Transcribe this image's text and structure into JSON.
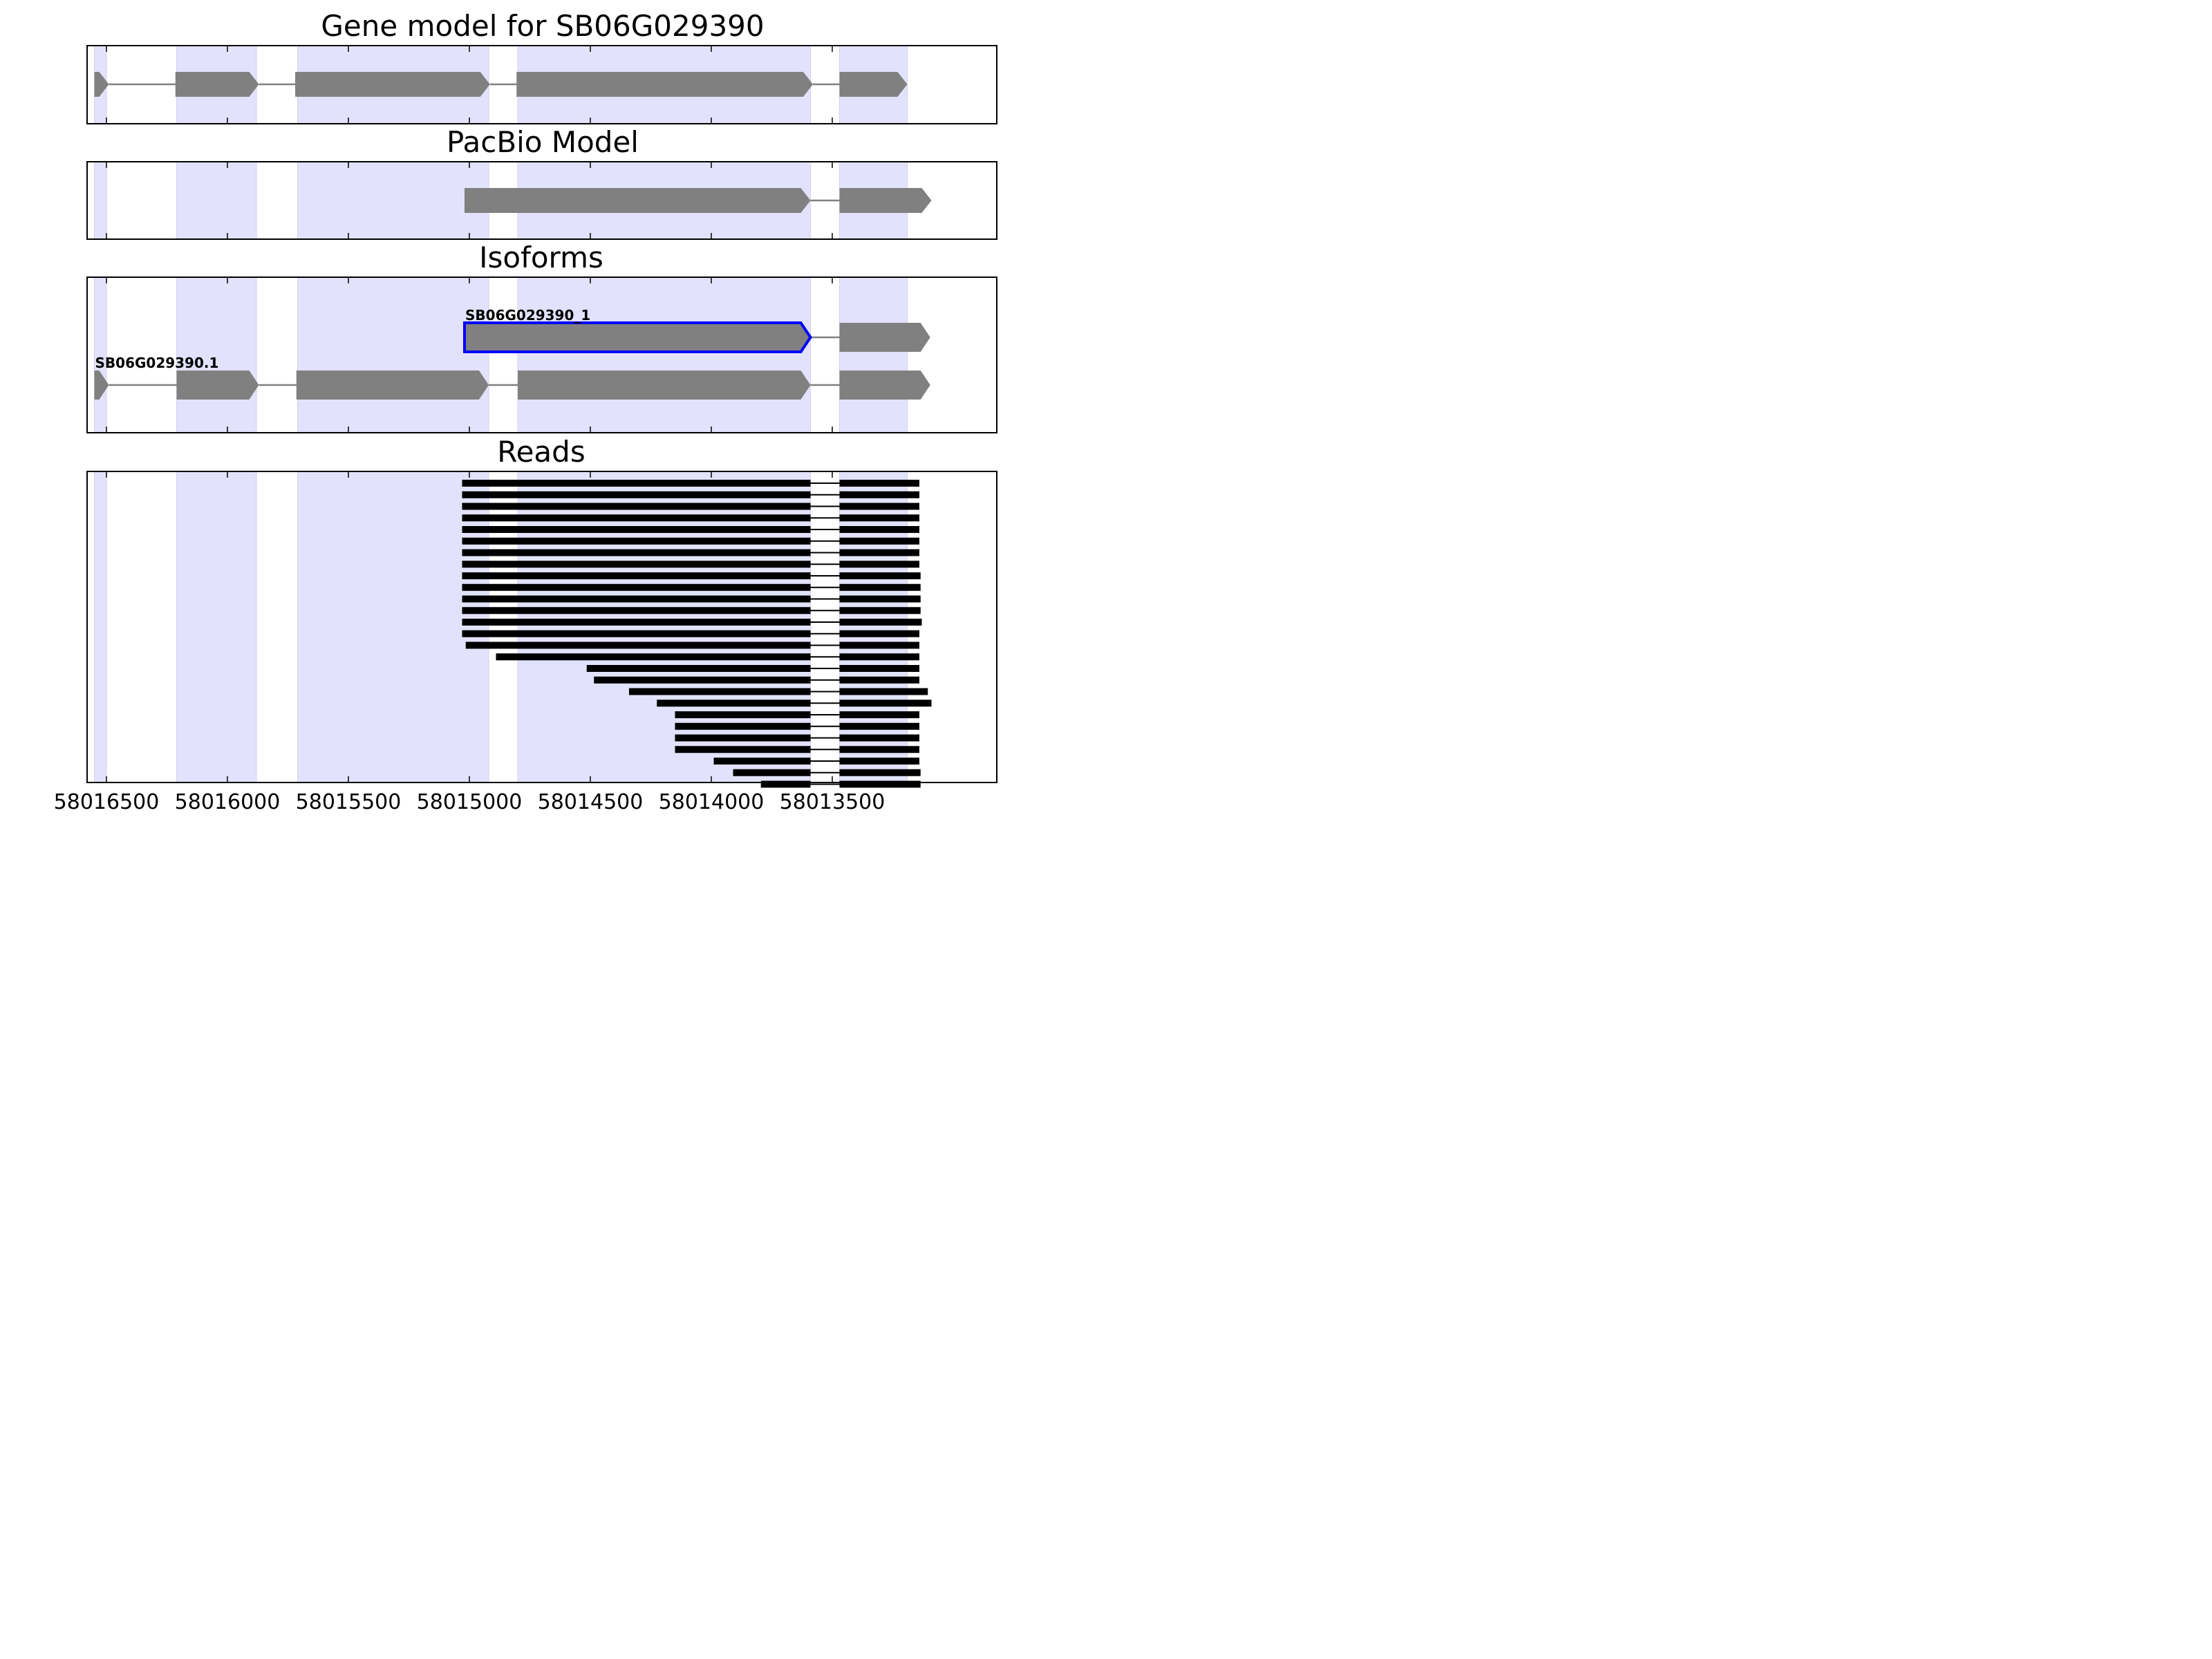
{
  "chart_data": {
    "type": "gene-model",
    "x_axis": {
      "direction": "reversed",
      "range": [
        58016580,
        58012820
      ],
      "ticks": [
        58016500,
        58016000,
        58015500,
        58015000,
        58014500,
        58014000,
        58013500
      ],
      "tick_labels": [
        "58016500",
        "58016000",
        "58015500",
        "58015000",
        "58014500",
        "58014000",
        "58013500"
      ]
    },
    "highlight_color": "#e2e2fc",
    "exon_color": "#808080",
    "intron_color": "#808080",
    "read_color": "#000000",
    "selected_outline_color": "#0000ff",
    "exon_regions": [
      [
        58016550,
        58016500
      ],
      [
        58016210,
        58015880
      ],
      [
        58015710,
        58014920
      ],
      [
        58014800,
        58013590
      ],
      [
        58013470,
        58013190
      ]
    ],
    "panels": [
      {
        "title": "Gene model for SB06G029390",
        "tracks": [
          {
            "label": "",
            "exons": [
              [
                58016550,
                58016490
              ],
              [
                58016215,
                58015870
              ],
              [
                58015720,
                58014915
              ],
              [
                58014805,
                58013580
              ],
              [
                58013470,
                58013190
              ]
            ]
          }
        ]
      },
      {
        "title": "PacBio Model",
        "tracks": [
          {
            "label": "",
            "exons": [
              [
                58015020,
                58013590
              ],
              [
                58013470,
                58013090
              ]
            ]
          }
        ]
      },
      {
        "title": "Isoforms",
        "tracks": [
          {
            "label": "SB06G029390_1",
            "selected": true,
            "exons": [
              [
                58015020,
                58013590
              ],
              [
                58013470,
                58013095
              ]
            ]
          },
          {
            "label": "SB06G029390.1",
            "selected": false,
            "exons": [
              [
                58016550,
                58016490
              ],
              [
                58016210,
                58015870
              ],
              [
                58015715,
                58014920
              ],
              [
                58014800,
                58013590
              ],
              [
                58013470,
                58013095
              ]
            ]
          }
        ]
      },
      {
        "title": "Reads",
        "reads": [
          {
            "start": 58015030,
            "end": 58013140
          },
          {
            "start": 58015030,
            "end": 58013140
          },
          {
            "start": 58015030,
            "end": 58013140
          },
          {
            "start": 58015030,
            "end": 58013140
          },
          {
            "start": 58015030,
            "end": 58013140
          },
          {
            "start": 58015030,
            "end": 58013140
          },
          {
            "start": 58015030,
            "end": 58013140
          },
          {
            "start": 58015030,
            "end": 58013140
          },
          {
            "start": 58015030,
            "end": 58013135
          },
          {
            "start": 58015030,
            "end": 58013135
          },
          {
            "start": 58015030,
            "end": 58013135
          },
          {
            "start": 58015030,
            "end": 58013135
          },
          {
            "start": 58015030,
            "end": 58013130
          },
          {
            "start": 58015030,
            "end": 58013140
          },
          {
            "start": 58015015,
            "end": 58013140
          },
          {
            "start": 58014890,
            "end": 58013140
          },
          {
            "start": 58014515,
            "end": 58013140
          },
          {
            "start": 58014485,
            "end": 58013140
          },
          {
            "start": 58014340,
            "end": 58013105
          },
          {
            "start": 58014225,
            "end": 58013090
          },
          {
            "start": 58014150,
            "end": 58013140
          },
          {
            "start": 58014150,
            "end": 58013140
          },
          {
            "start": 58014150,
            "end": 58013140
          },
          {
            "start": 58014150,
            "end": 58013140
          },
          {
            "start": 58013990,
            "end": 58013140
          },
          {
            "start": 58013910,
            "end": 58013135
          },
          {
            "start": 58013795,
            "end": 58013135
          }
        ],
        "read_intron": [
          58013590,
          58013470
        ]
      }
    ]
  }
}
